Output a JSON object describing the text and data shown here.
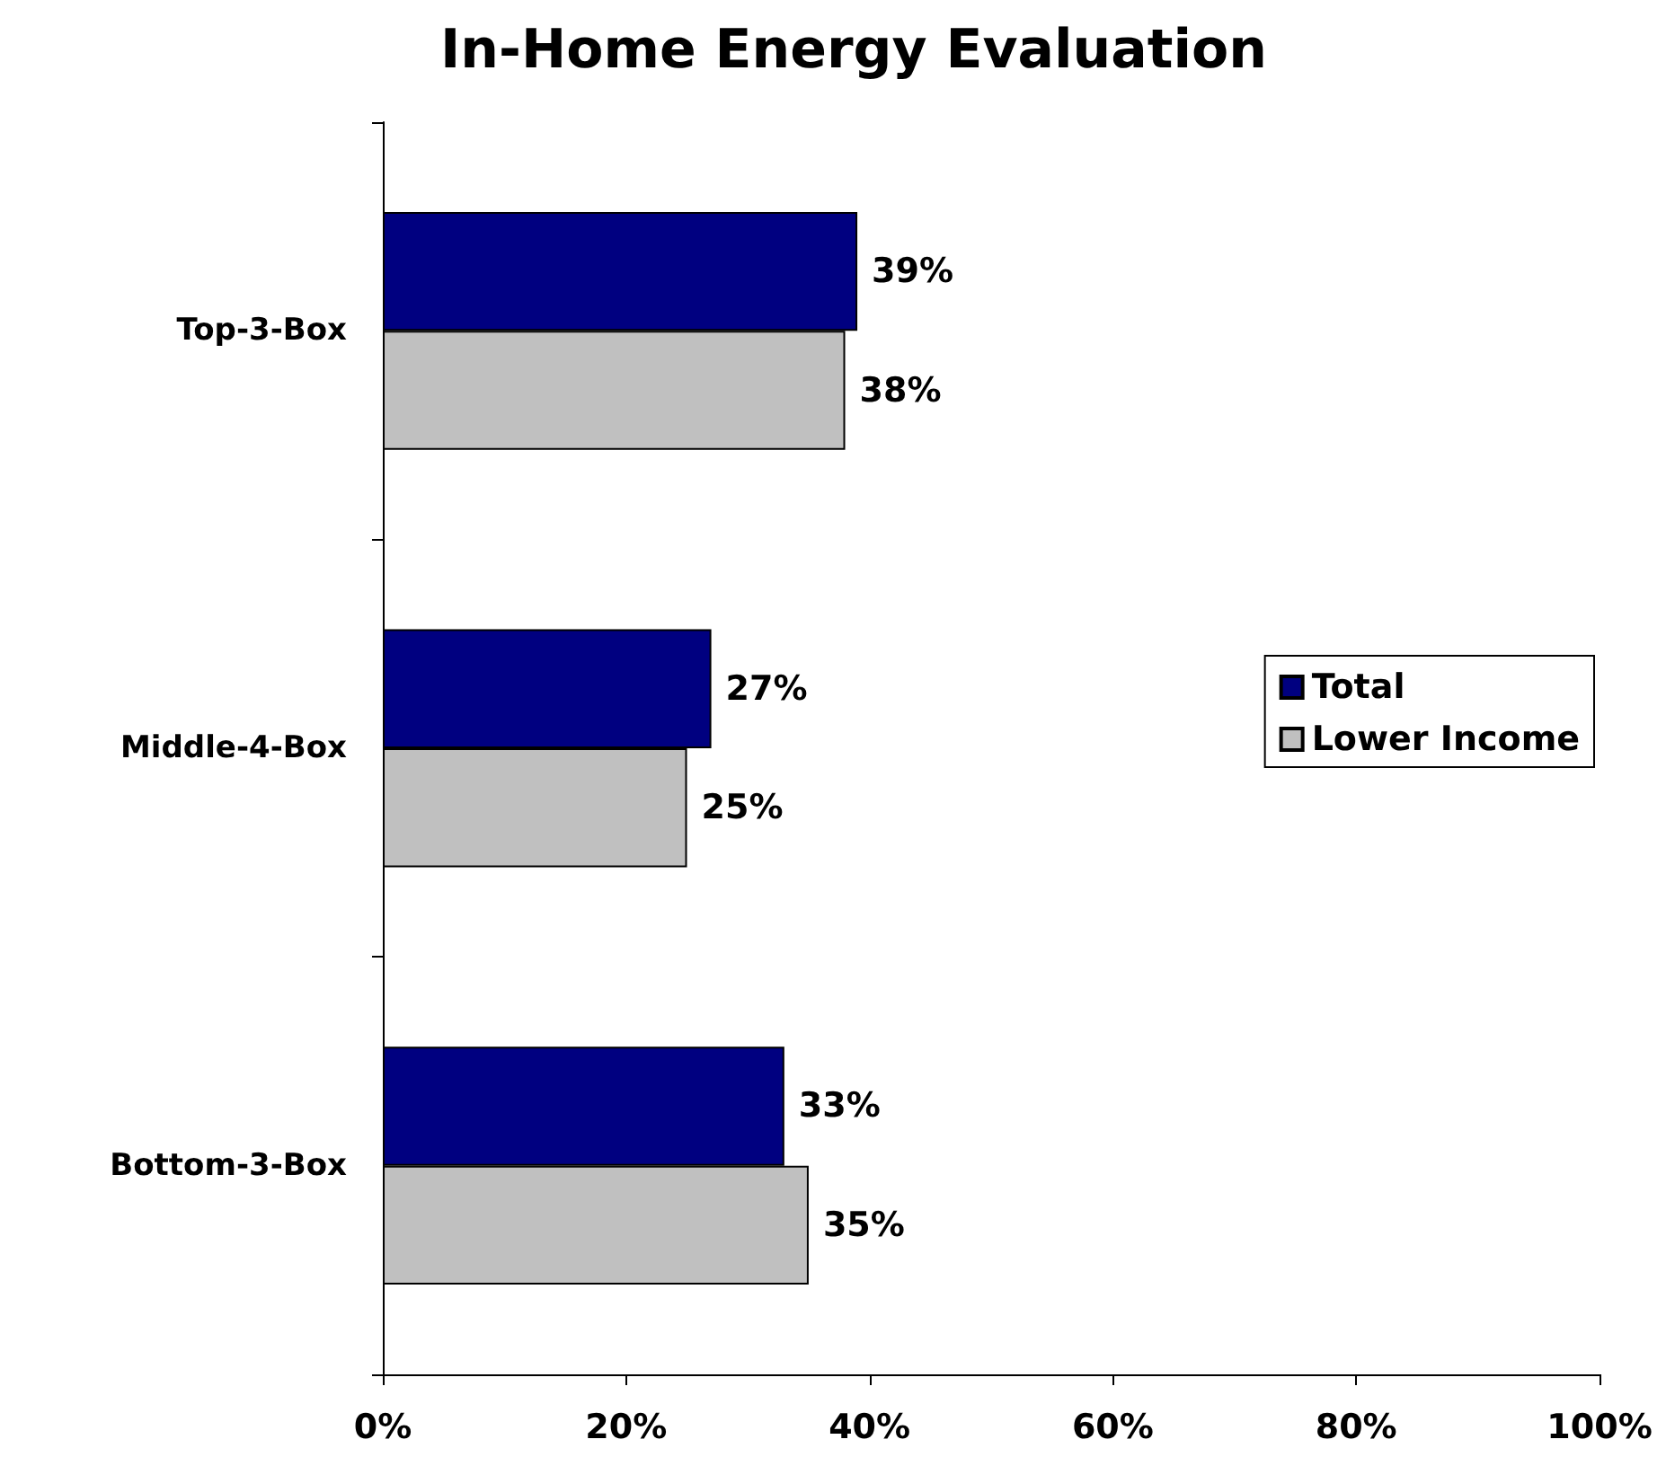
{
  "chart_data": {
    "type": "bar",
    "orientation": "horizontal",
    "title": "In-Home Energy Evaluation",
    "categories": [
      "Top-3-Box",
      "Middle-4-Box",
      "Bottom-3-Box"
    ],
    "series": [
      {
        "name": "Total",
        "color": "#000080",
        "values": [
          39,
          27,
          33
        ],
        "value_labels": [
          "39%",
          "27%",
          "33%"
        ]
      },
      {
        "name": "Lower Income",
        "color": "#c0c0c0",
        "values": [
          38,
          25,
          35
        ],
        "value_labels": [
          "38%",
          "25%",
          "35%"
        ]
      }
    ],
    "xlim": [
      0,
      100
    ],
    "xticks": [
      {
        "value": 0,
        "label": "0%"
      },
      {
        "value": 20,
        "label": "20%"
      },
      {
        "value": 40,
        "label": "40%"
      },
      {
        "value": 60,
        "label": "60%"
      },
      {
        "value": 80,
        "label": "80%"
      },
      {
        "value": 100,
        "label": "100%"
      }
    ],
    "grid": false,
    "legend": "right"
  }
}
